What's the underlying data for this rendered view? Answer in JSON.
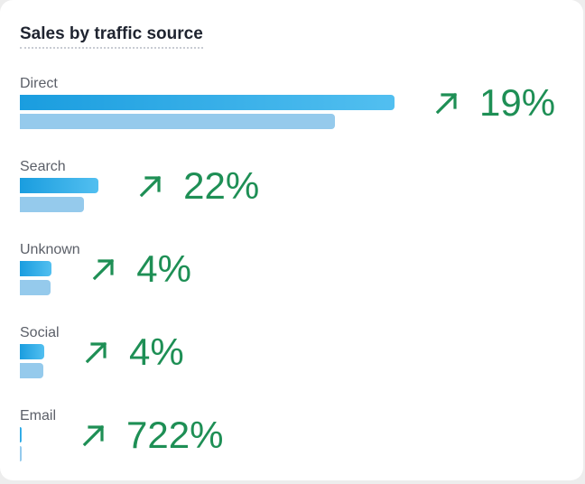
{
  "widget": {
    "title": "Sales by traffic source"
  },
  "chart_data": {
    "type": "bar",
    "orientation": "horizontal",
    "title": "Sales by traffic source",
    "categories": [
      "Direct",
      "Search",
      "Unknown",
      "Social",
      "Email"
    ],
    "series": [
      {
        "values": [
          100,
          21,
          8.5,
          6.5,
          0.4
        ],
        "color": "#2aa8e6"
      },
      {
        "values": [
          84,
          17.2,
          8.1,
          6.3,
          0.05
        ],
        "color": "#95caec"
      }
    ],
    "changes": [
      {
        "direction": "up",
        "label": "19%"
      },
      {
        "direction": "up",
        "label": "22%"
      },
      {
        "direction": "up",
        "label": "4%"
      },
      {
        "direction": "up",
        "label": "4%"
      },
      {
        "direction": "up",
        "label": "722%"
      }
    ],
    "change_color": "#1e8f55",
    "xlim": [
      0,
      100
    ],
    "grid": false,
    "legend": "none"
  }
}
